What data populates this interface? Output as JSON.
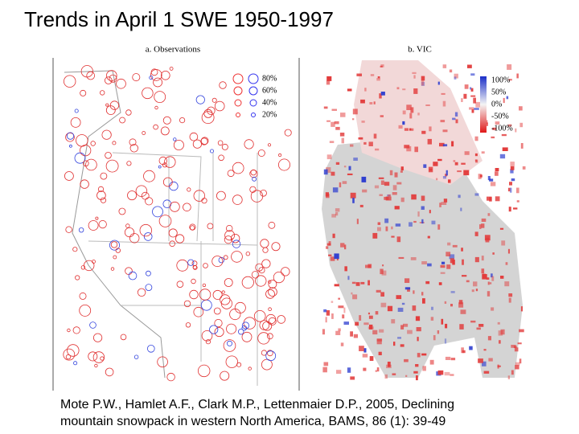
{
  "title": "Trends in April 1 SWE 1950-1997",
  "panels": [
    {
      "label": "a. Observations",
      "legend": [
        "80%",
        "60%",
        "40%",
        "20%"
      ]
    },
    {
      "label": "b. VIC",
      "legend": [
        "100%",
        "50%",
        "0%",
        "-50%",
        "-100%"
      ]
    }
  ],
  "citation": [
    "Mote P.W., Hamlet A.F., Clark M.P., Lettenmaier D.P., 2005, Declining",
    "mountain snowpack in western North America, BAMS, 86 (1): 39-49"
  ]
}
